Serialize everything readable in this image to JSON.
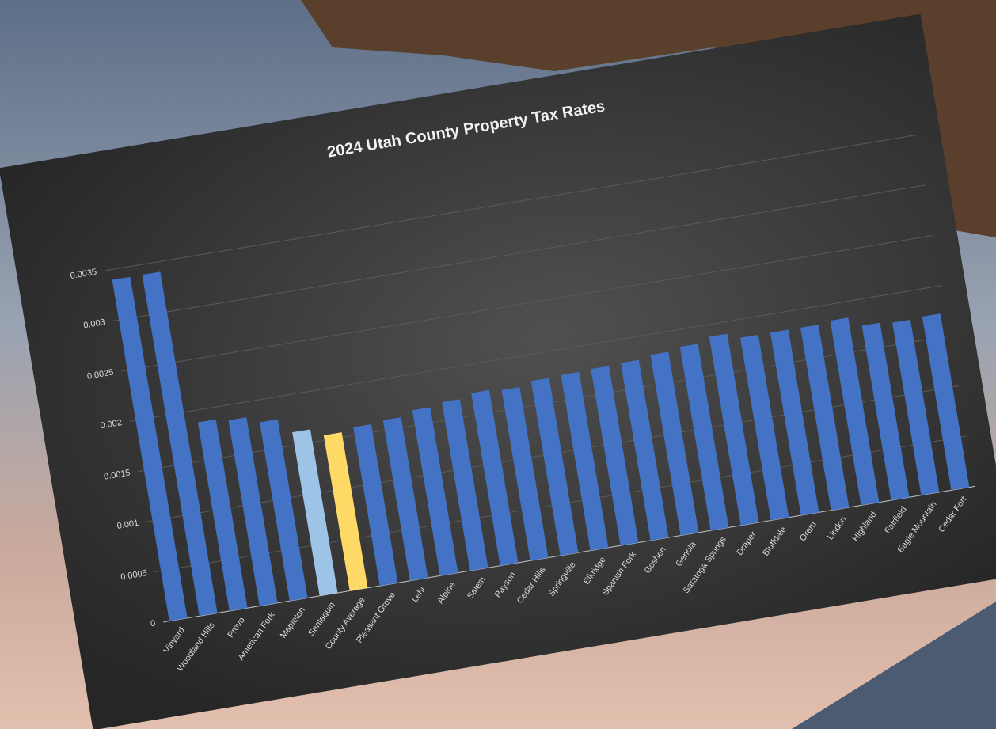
{
  "chart_data": {
    "type": "bar",
    "title": "2024 Utah County Property Tax Rates",
    "categories": [
      "Vinyard",
      "Woodland Hills",
      "Provo",
      "American Fork",
      "Mapleton",
      "Santaquin",
      "County Average",
      "Pleasant Grove",
      "Lehi",
      "Alpine",
      "Salem",
      "Payson",
      "Cedar Hills",
      "Springville",
      "Elkridge",
      "Spanish Fork",
      "Goshen",
      "Genola",
      "Saratoga Springs",
      "Draper",
      "Bluffdale",
      "Orem",
      "Lindon",
      "Highland",
      "Fairfield",
      "Eagle Mountain",
      "Cedar Fort"
    ],
    "values": [
      0.0034,
      0.0034,
      0.00188,
      0.00185,
      0.00178,
      0.00163,
      0.00155,
      0.00158,
      0.0016,
      0.00165,
      0.00168,
      0.00172,
      0.0017,
      0.00174,
      0.00175,
      0.00176,
      0.00177,
      0.0018,
      0.00183,
      0.00188,
      0.00182,
      0.00182,
      0.00182,
      0.00184,
      0.00174,
      0.00172,
      0.00173
    ],
    "colors": [
      "#4472c4",
      "#4472c4",
      "#4472c4",
      "#4472c4",
      "#4472c4",
      "#9dc3e6",
      "#ffd966",
      "#4472c4",
      "#4472c4",
      "#4472c4",
      "#4472c4",
      "#4472c4",
      "#4472c4",
      "#4472c4",
      "#4472c4",
      "#4472c4",
      "#4472c4",
      "#4472c4",
      "#4472c4",
      "#4472c4",
      "#4472c4",
      "#4472c4",
      "#4472c4",
      "#4472c4",
      "#4472c4",
      "#4472c4",
      "#4472c4"
    ],
    "ylim": [
      0,
      0.0035
    ],
    "yticks": [
      0,
      0.0005,
      0.001,
      0.0015,
      0.002,
      0.0025,
      0.003,
      0.0035
    ],
    "grid": true
  }
}
